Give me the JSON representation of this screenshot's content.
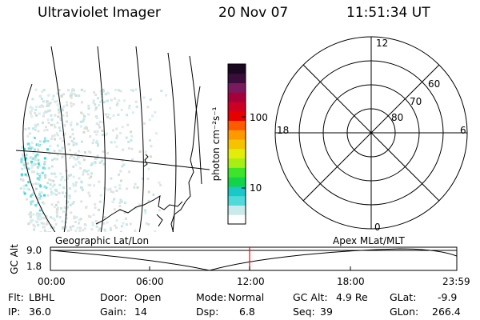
{
  "header": {
    "instrument": "Ultraviolet Imager",
    "date": "20 Nov 07",
    "time": "11:51:34 UT"
  },
  "colorbar": {
    "unit": "photon cm⁻²s⁻¹",
    "ticks": [
      "100",
      "10"
    ],
    "colors": [
      "#ffffff",
      "#c8eaea",
      "#4fd9d8",
      "#1cc7c8",
      "#12d34a",
      "#3ee42a",
      "#a6ee14",
      "#e2ee0a",
      "#f5c400",
      "#ff9900",
      "#ff5a00",
      "#e60000",
      "#cc0022",
      "#a6003a",
      "#7a1a5e",
      "#3a0d3a",
      "#1a0820"
    ]
  },
  "polar": {
    "mlt_labels": [
      "12",
      "18",
      "6",
      "0"
    ],
    "lat_labels": [
      "60",
      "70",
      "80"
    ]
  },
  "map": {
    "left_label": "Geographic Lat/Lon",
    "right_label": "Apex MLat/MLT"
  },
  "altitude_plot": {
    "axis_label": "GC Alt",
    "y_ticks": [
      "9.0",
      "1.8"
    ],
    "x_ticks": [
      "00:00",
      "06:00",
      "12:00",
      "18:00",
      "23:59"
    ],
    "marker_color": "#ff0000"
  },
  "status": {
    "flt_label": "Flt:",
    "flt_value": "LBHL",
    "ip_label": "IP:",
    "ip_value": "36.0",
    "door_label": "Door:",
    "door_value": "Open",
    "gain_label": "Gain:",
    "gain_value": "14",
    "mode_label": "Mode:",
    "mode_value": "Normal",
    "dsp_label": "Dsp:",
    "dsp_value": "6.8",
    "gcalt_label": "GC Alt:",
    "gcalt_value": "4.9 Re",
    "seq_label": "Seq:",
    "seq_value": "39",
    "glat_label": "GLat:",
    "glat_value": "-9.9",
    "glon_label": "GLon:",
    "glon_value": "266.4"
  }
}
